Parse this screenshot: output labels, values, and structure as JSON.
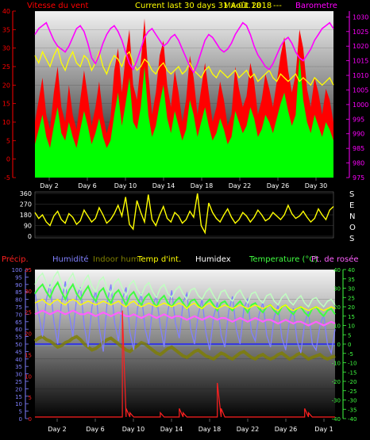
{
  "header": {
    "wind_title": "Vitesse du vent",
    "center_title": "Current last 30 days 31 Août 2018",
    "overlap_text": "Mx-01.18",
    "dashes": "---",
    "pressure_title": "Barometre"
  },
  "colors": {
    "wind_red": "#ff0000",
    "wind_green": "#00ff00",
    "pressure": "#ff00ff",
    "yellow": "#ffff00",
    "humidity": "#8080ff",
    "indoor_hum": "#808000",
    "indoor_temp": "#ffff00",
    "humidex": "#c0ffc0",
    "temperature": "#40ff40",
    "dewpoint": "#ff60ff",
    "precip": "#ff2020",
    "grid_blue": "#2020ff"
  },
  "legend2": {
    "precip": "Précip.",
    "humidity": "Humidité",
    "indoor_hum": "Indoor hum",
    "indoor_temp": "Temp d'int.",
    "humidex": "Humidex",
    "temperature": "Temperature (°C)",
    "dewpoint": "Pt. de rosée"
  },
  "x_ticks_top": [
    "Day 2",
    "Day 6",
    "Day 10",
    "Day 14",
    "Day 18",
    "Day 22",
    "Day 26",
    "Day 30"
  ],
  "x_ticks_bottom": [
    "Day 2",
    "Day 6",
    "Day 10",
    "Day 14",
    "Day 18",
    "Day 22",
    "Day 26",
    "Day 1"
  ],
  "compass": [
    "S",
    "E",
    "N",
    "O",
    "S"
  ],
  "chart_data": [
    {
      "type": "line",
      "name": "wind-pressure",
      "yleft_ticks": [
        40,
        35,
        30,
        25,
        20,
        15,
        10,
        5,
        0,
        -5
      ],
      "ylim_left": [
        -5,
        40
      ],
      "yright_ticks": [
        1030,
        1025,
        1020,
        1015,
        1010,
        1005,
        1000,
        995,
        990,
        985,
        980,
        975
      ],
      "ylim_right": [
        975,
        1032
      ],
      "series": [
        {
          "name": "Barometre",
          "axis": "right",
          "values": [
            1024,
            1026,
            1027,
            1028,
            1025,
            1022,
            1020,
            1019,
            1018,
            1020,
            1023,
            1026,
            1027,
            1025,
            1021,
            1016,
            1014,
            1017,
            1021,
            1024,
            1026,
            1027,
            1025,
            1022,
            1018,
            1014,
            1012,
            1015,
            1019,
            1023,
            1025,
            1026,
            1024,
            1022,
            1020,
            1021,
            1023,
            1024,
            1022,
            1019,
            1016,
            1013,
            1011,
            1014,
            1018,
            1022,
            1024,
            1023,
            1021,
            1019,
            1018,
            1019,
            1021,
            1024,
            1026,
            1028,
            1027,
            1024,
            1020,
            1017,
            1015,
            1013,
            1012,
            1014,
            1017,
            1020,
            1022,
            1023,
            1021,
            1018,
            1016,
            1015,
            1017,
            1019,
            1022,
            1024,
            1026,
            1027,
            1028,
            1026
          ]
        },
        {
          "name": "Vitesse du vent",
          "axis": "left",
          "values": [
            4,
            8,
            12,
            6,
            3,
            9,
            14,
            7,
            5,
            10,
            6,
            3,
            8,
            13,
            9,
            4,
            7,
            11,
            6,
            3,
            5,
            12,
            18,
            9,
            15,
            22,
            10,
            8,
            14,
            25,
            12,
            6,
            9,
            15,
            20,
            11,
            7,
            13,
            9,
            5,
            8,
            16,
            12,
            6,
            10,
            14,
            9,
            5,
            7,
            11,
            8,
            4,
            6,
            13,
            10,
            7,
            9,
            14,
            11,
            6,
            8,
            12,
            10,
            7,
            11,
            15,
            18,
            13,
            9,
            12,
            28,
            16,
            10,
            7,
            12,
            9,
            6,
            10,
            8,
            5
          ]
        },
        {
          "name": "Rafale",
          "axis": "left",
          "values": [
            10,
            16,
            22,
            12,
            8,
            18,
            25,
            14,
            10,
            20,
            12,
            8,
            16,
            24,
            17,
            9,
            14,
            21,
            12,
            7,
            11,
            24,
            30,
            18,
            28,
            35,
            20,
            16,
            26,
            38,
            23,
            12,
            18,
            28,
            32,
            20,
            14,
            24,
            18,
            10,
            16,
            28,
            22,
            12,
            19,
            26,
            18,
            10,
            14,
            21,
            16,
            9,
            12,
            25,
            19,
            14,
            17,
            26,
            21,
            12,
            16,
            23,
            19,
            14,
            21,
            28,
            33,
            24,
            18,
            23,
            35,
            30,
            19,
            14,
            22,
            18,
            12,
            19,
            16,
            10
          ]
        },
        {
          "name": "Vent moyen",
          "axis": "left",
          "values": [
            28,
            26,
            29,
            27,
            25,
            28,
            30,
            26,
            24,
            27,
            29,
            26,
            25,
            28,
            27,
            24,
            26,
            29,
            25,
            23,
            26,
            28,
            27,
            25,
            28,
            29,
            26,
            24,
            25,
            27,
            26,
            24,
            23,
            25,
            26,
            24,
            23,
            24,
            25,
            23,
            24,
            26,
            24,
            23,
            22,
            24,
            25,
            23,
            22,
            24,
            23,
            22,
            23,
            24,
            22,
            23,
            24,
            22,
            23,
            21,
            22,
            23,
            24,
            22,
            21,
            23,
            22,
            21,
            22,
            23,
            21,
            22,
            21,
            20,
            22,
            21,
            20,
            21,
            22,
            20
          ]
        }
      ]
    },
    {
      "type": "line",
      "name": "wind-direction",
      "yleft_ticks": [
        360,
        270,
        180,
        90,
        0
      ],
      "ylim_left": [
        0,
        360
      ],
      "series": [
        {
          "name": "Direction",
          "values": [
            200,
            150,
            180,
            120,
            90,
            170,
            210,
            140,
            110,
            190,
            160,
            100,
            130,
            220,
            170,
            120,
            150,
            240,
            180,
            110,
            140,
            190,
            260,
            170,
            330,
            100,
            60,
            300,
            200,
            120,
            350,
            140,
            90,
            180,
            250,
            150,
            120,
            200,
            170,
            110,
            140,
            210,
            160,
            360,
            90,
            30,
            280,
            200,
            150,
            120,
            180,
            230,
            160,
            110,
            140,
            200,
            170,
            120,
            160,
            220,
            180,
            130,
            150,
            200,
            170,
            140,
            180,
            260,
            190,
            150,
            170,
            210,
            160,
            120,
            150,
            230,
            180,
            140,
            220,
            250
          ]
        }
      ]
    },
    {
      "type": "line",
      "name": "humidity-temperature",
      "yleft_ticks": [
        100,
        95,
        90,
        85,
        80,
        75,
        70,
        65,
        60,
        55,
        50,
        45,
        40,
        35,
        30,
        25,
        20,
        15,
        10,
        5,
        0
      ],
      "ylim_left": [
        0,
        100
      ],
      "yleft2_ticks": [
        35,
        30,
        25,
        20,
        15,
        10,
        5,
        0
      ],
      "yright_inner_ticks": [
        40,
        30,
        20,
        10,
        0,
        -10,
        -20,
        -30,
        -40
      ],
      "yright_outer_ticks": [
        40,
        35,
        30,
        25,
        20,
        15,
        10,
        5,
        0,
        -5,
        -10,
        -15,
        -20,
        -25,
        -30,
        -35,
        -40
      ],
      "ylim_right": [
        -40,
        40
      ],
      "series": [
        {
          "name": "Humidité",
          "axis": "left",
          "values": [
            85,
            70,
            55,
            80,
            90,
            65,
            50,
            78,
            92,
            70,
            55,
            82,
            88,
            62,
            48,
            75,
            86,
            60,
            45,
            78,
            90,
            64,
            52,
            80,
            88,
            58,
            46,
            74,
            84,
            60,
            50,
            76,
            82,
            62,
            48,
            72,
            86,
            64,
            54,
            78,
            84,
            60,
            50,
            70,
            80,
            58,
            46,
            68,
            78,
            56,
            48,
            72,
            82,
            60,
            50,
            74,
            80,
            58,
            52,
            70,
            78,
            56,
            48,
            68,
            76,
            54,
            46,
            66,
            74,
            52,
            44,
            64,
            72,
            50,
            46,
            62,
            70,
            50,
            44,
            60
          ]
        },
        {
          "name": "Indoor hum",
          "axis": "left",
          "values": [
            52,
            54,
            55,
            53,
            52,
            50,
            48,
            49,
            51,
            52,
            54,
            55,
            53,
            50,
            48,
            46,
            47,
            49,
            51,
            53,
            54,
            52,
            50,
            48,
            46,
            45,
            47,
            49,
            51,
            50,
            48,
            46,
            44,
            43,
            45,
            47,
            48,
            46,
            44,
            42,
            41,
            43,
            45,
            46,
            44,
            42,
            41,
            40,
            42,
            44,
            43,
            41,
            40,
            42,
            44,
            45,
            43,
            41,
            40,
            42,
            43,
            41,
            40,
            41,
            43,
            44,
            42,
            40,
            41,
            43,
            44,
            42,
            40,
            41,
            42,
            43,
            41,
            40,
            41,
            42
          ]
        },
        {
          "name": "Temp d'int.",
          "axis": "right",
          "values": [
            22,
            23,
            24,
            22,
            21,
            23,
            24,
            22,
            21,
            23,
            24,
            23,
            21,
            22,
            23,
            22,
            21,
            22,
            23,
            22,
            21,
            22,
            23,
            21,
            20,
            22,
            23,
            21,
            20,
            21,
            22,
            21,
            20,
            21,
            22,
            21,
            20,
            21,
            22,
            21,
            19,
            21,
            22,
            20,
            19,
            21,
            22,
            20,
            19,
            20,
            21,
            20,
            19,
            20,
            21,
            20,
            19,
            20,
            21,
            20,
            19,
            20,
            21,
            19,
            18,
            20,
            21,
            19,
            18,
            19,
            20,
            19,
            18,
            19,
            20,
            19,
            18,
            19,
            20,
            19
          ]
        },
        {
          "name": "Humidex",
          "axis": "right",
          "values": [
            32,
            36,
            38,
            33,
            30,
            36,
            39,
            33,
            29,
            35,
            38,
            32,
            29,
            34,
            37,
            31,
            28,
            34,
            36,
            30,
            27,
            33,
            35,
            30,
            26,
            32,
            34,
            29,
            26,
            31,
            33,
            28,
            25,
            30,
            32,
            27,
            25,
            29,
            31,
            27,
            24,
            29,
            30,
            26,
            24,
            28,
            30,
            26,
            23,
            28,
            29,
            25,
            23,
            27,
            29,
            25,
            22,
            27,
            28,
            24,
            22,
            26,
            27,
            23,
            21,
            25,
            27,
            23,
            21,
            24,
            26,
            22,
            20,
            24,
            25,
            22,
            20,
            23,
            24,
            21
          ]
        },
        {
          "name": "Temperature (°C)",
          "axis": "right",
          "values": [
            27,
            30,
            32,
            28,
            25,
            30,
            33,
            28,
            24,
            29,
            32,
            27,
            24,
            28,
            31,
            26,
            23,
            28,
            30,
            25,
            22,
            27,
            29,
            25,
            21,
            26,
            28,
            24,
            21,
            25,
            27,
            23,
            20,
            24,
            26,
            22,
            20,
            23,
            25,
            22,
            19,
            23,
            24,
            21,
            19,
            22,
            24,
            21,
            18,
            22,
            23,
            20,
            18,
            21,
            23,
            20,
            17,
            21,
            22,
            19,
            17,
            20,
            21,
            18,
            16,
            20,
            21,
            18,
            16,
            19,
            20,
            17,
            15,
            19,
            20,
            17,
            15,
            18,
            19,
            16
          ]
        },
        {
          "name": "Pt. de rosée",
          "axis": "right",
          "values": [
            16,
            17,
            18,
            17,
            16,
            17,
            18,
            17,
            16,
            17,
            18,
            17,
            16,
            16,
            17,
            16,
            15,
            16,
            17,
            16,
            15,
            16,
            17,
            16,
            15,
            15,
            16,
            15,
            14,
            15,
            16,
            15,
            14,
            15,
            16,
            15,
            14,
            15,
            15,
            14,
            13,
            14,
            15,
            14,
            13,
            14,
            15,
            14,
            13,
            14,
            14,
            13,
            12,
            13,
            14,
            13,
            12,
            13,
            14,
            13,
            12,
            13,
            13,
            12,
            11,
            12,
            13,
            12,
            11,
            12,
            12,
            11,
            10,
            11,
            12,
            11,
            10,
            11,
            12,
            11
          ]
        },
        {
          "name": "Précip.",
          "axis": "left2",
          "values": [
            0,
            0,
            0,
            0,
            0,
            0,
            0,
            0,
            0,
            0,
            0,
            0,
            0,
            0,
            0,
            0,
            0,
            0,
            0,
            0,
            0,
            0,
            0,
            25,
            2,
            1,
            0,
            0,
            0,
            0,
            0,
            0,
            0,
            1,
            0,
            0,
            0,
            0,
            2,
            1,
            0,
            0,
            0,
            0,
            0,
            0,
            0,
            0,
            8,
            2,
            0,
            0,
            0,
            0,
            0,
            0,
            0,
            0,
            0,
            0,
            0,
            0,
            0,
            0,
            0,
            0,
            0,
            0,
            0,
            0,
            0,
            2,
            1,
            0,
            0,
            0,
            0,
            0,
            0,
            0
          ]
        }
      ]
    }
  ]
}
